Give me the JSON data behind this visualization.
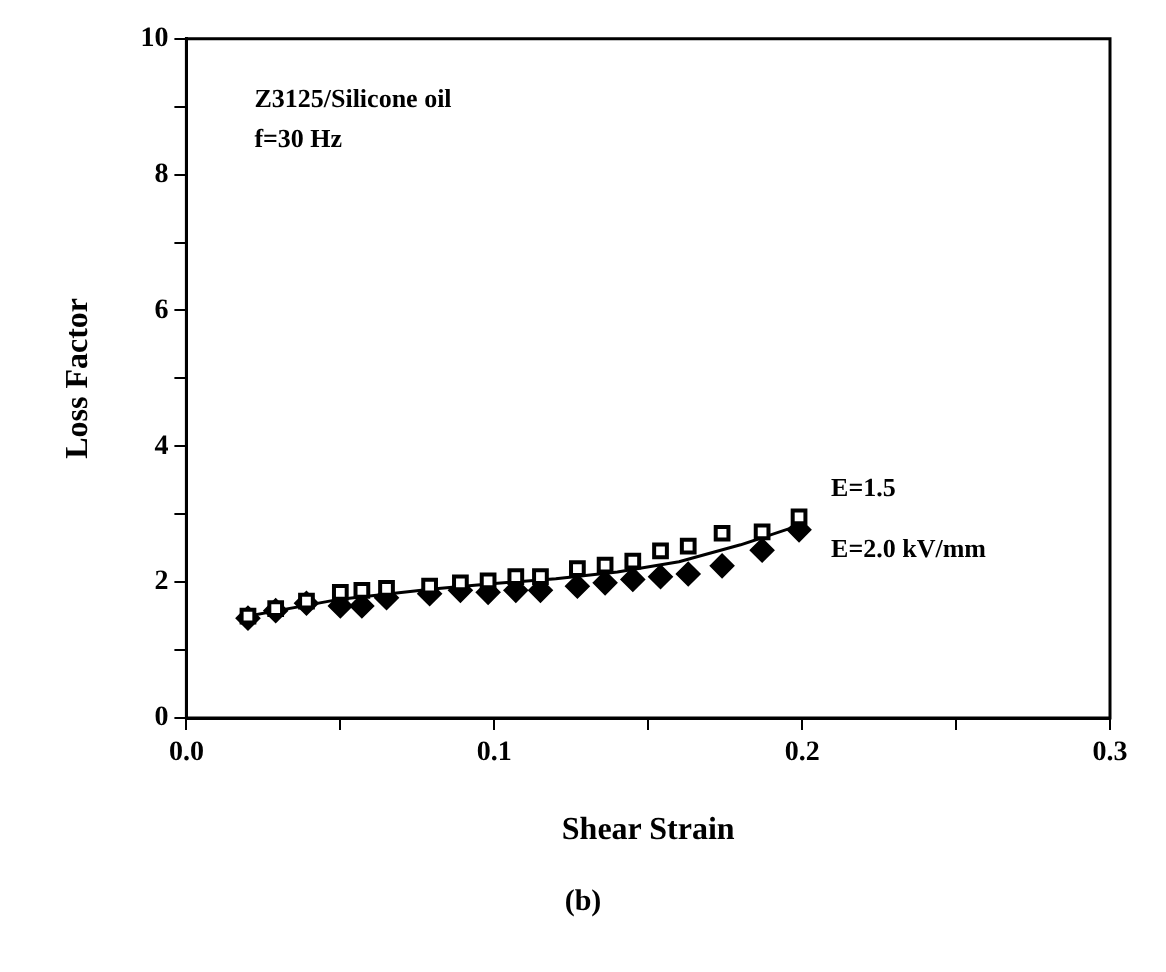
{
  "chart_data": {
    "type": "scatter",
    "xlabel": "Shear Strain",
    "ylabel": "Loss Factor",
    "annotations": [
      "Z3125/Silicone oil",
      "f=30 Hz",
      "(b)"
    ],
    "xlim": [
      0,
      0.3
    ],
    "ylim": [
      0,
      10
    ],
    "xticks": [
      {
        "value": 0,
        "label": "0.0"
      },
      {
        "value": 0.05,
        "label": null
      },
      {
        "value": 0.1,
        "label": "0.1"
      },
      {
        "value": 0.15,
        "label": null
      },
      {
        "value": 0.2,
        "label": "0.2"
      },
      {
        "value": 0.25,
        "label": null
      },
      {
        "value": 0.3,
        "label": "0.3"
      }
    ],
    "yticks": [
      0,
      {
        "value": 1,
        "label": null
      },
      2,
      {
        "value": 3,
        "label": null
      },
      4,
      {
        "value": 5,
        "label": null
      },
      6,
      {
        "value": 7,
        "label": null
      },
      8,
      {
        "value": 9,
        "label": null
      },
      10
    ],
    "grid": false,
    "legend": false,
    "series": [
      {
        "name": "E=1.5",
        "marker": "square",
        "color": "#000000",
        "x": [
          0.02,
          0.029,
          0.039,
          0.05,
          0.057,
          0.065,
          0.079,
          0.089,
          0.098,
          0.107,
          0.115,
          0.127,
          0.136,
          0.145,
          0.154,
          0.163,
          0.174,
          0.187,
          0.199
        ],
        "values": [
          1.5,
          1.61,
          1.72,
          1.85,
          1.88,
          1.91,
          1.94,
          1.99,
          2.02,
          2.08,
          2.08,
          2.2,
          2.25,
          2.31,
          2.46,
          2.53,
          2.72,
          2.74,
          2.96
        ]
      },
      {
        "name": "E=2.0 kV/mm",
        "marker": "diamond",
        "color": "#000000",
        "x": [
          0.02,
          0.029,
          0.039,
          0.05,
          0.057,
          0.065,
          0.079,
          0.089,
          0.098,
          0.107,
          0.115,
          0.127,
          0.136,
          0.145,
          0.154,
          0.163,
          0.174,
          0.187,
          0.199
        ],
        "values": [
          1.47,
          1.58,
          1.69,
          1.65,
          1.65,
          1.77,
          1.83,
          1.88,
          1.85,
          1.88,
          1.88,
          1.94,
          1.99,
          2.04,
          2.08,
          2.12,
          2.24,
          2.47,
          2.77
        ]
      },
      {
        "type": "line",
        "marker": "none",
        "line_style": "solid",
        "color": "#000000",
        "x": [
          0.02,
          0.05,
          0.08,
          0.1,
          0.12,
          0.14,
          0.16,
          0.18,
          0.2
        ],
        "values": [
          1.5,
          1.75,
          1.9,
          1.98,
          2.05,
          2.15,
          2.3,
          2.55,
          2.85
        ]
      }
    ]
  }
}
